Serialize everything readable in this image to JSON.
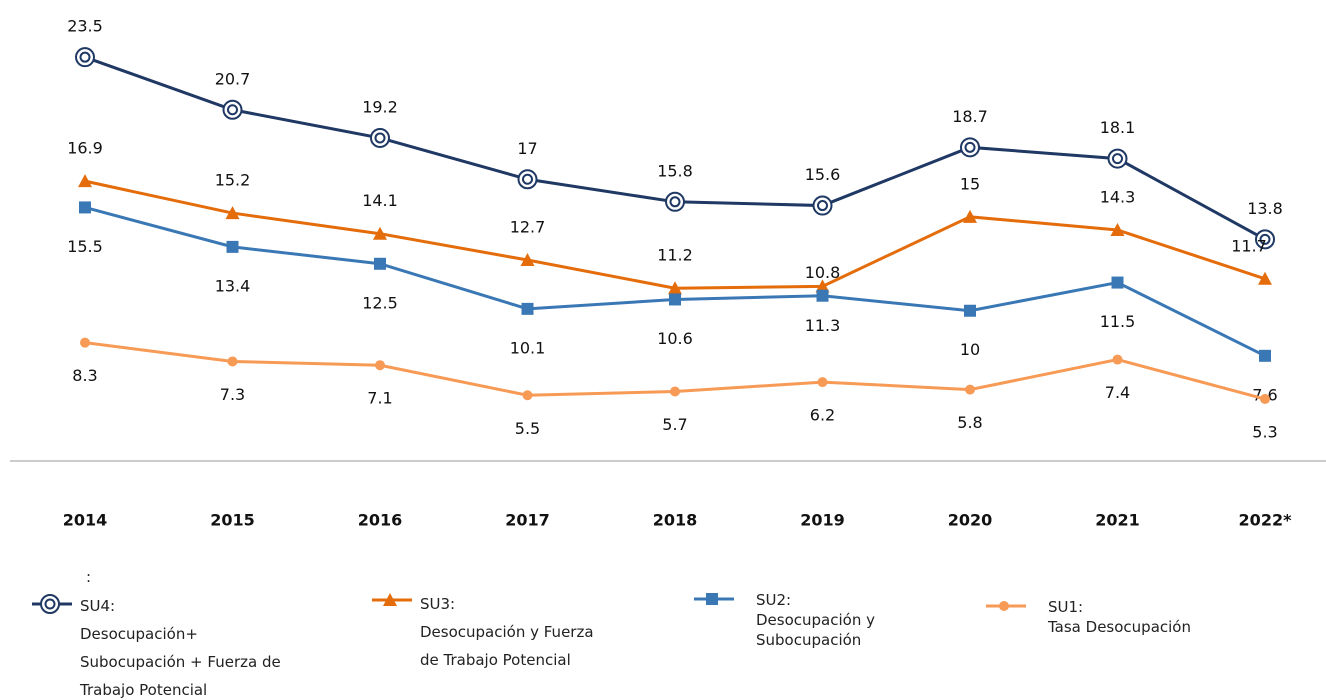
{
  "chart_data": {
    "type": "line",
    "categories": [
      "2014",
      "2015",
      "2016",
      "2017",
      "2018",
      "2019",
      "2020",
      "2021",
      "2022*"
    ],
    "legend_title": ":",
    "series": [
      {
        "name": "SU4:\nDesocupación+\nSubocupación + Fuerza de\nTrabajo Potencial",
        "color": "#1f3864",
        "values": [
          23.5,
          20.7,
          19.2,
          17.0,
          15.8,
          15.6,
          18.7,
          18.1,
          13.8
        ]
      },
      {
        "name": "SU3:\nDesocupación y Fuerza\nde Trabajo Potencial",
        "color": "#e46c0a",
        "values": [
          16.9,
          15.2,
          14.1,
          12.7,
          11.2,
          11.3,
          15.0,
          14.3,
          11.7
        ]
      },
      {
        "name": "SU2:\nDesocupación y\nSubocupación",
        "color": "#3a78b5",
        "values": [
          15.5,
          13.4,
          12.5,
          10.1,
          10.6,
          10.8,
          10.0,
          11.5,
          7.6
        ]
      },
      {
        "name": "SU1:\nTasa Desocupación",
        "color": "#f79a55",
        "values": [
          8.3,
          7.3,
          7.1,
          5.5,
          5.7,
          6.2,
          5.8,
          7.4,
          5.3
        ]
      }
    ],
    "ylim": [
      2,
      25
    ],
    "grid": false,
    "legend": "bottom"
  }
}
